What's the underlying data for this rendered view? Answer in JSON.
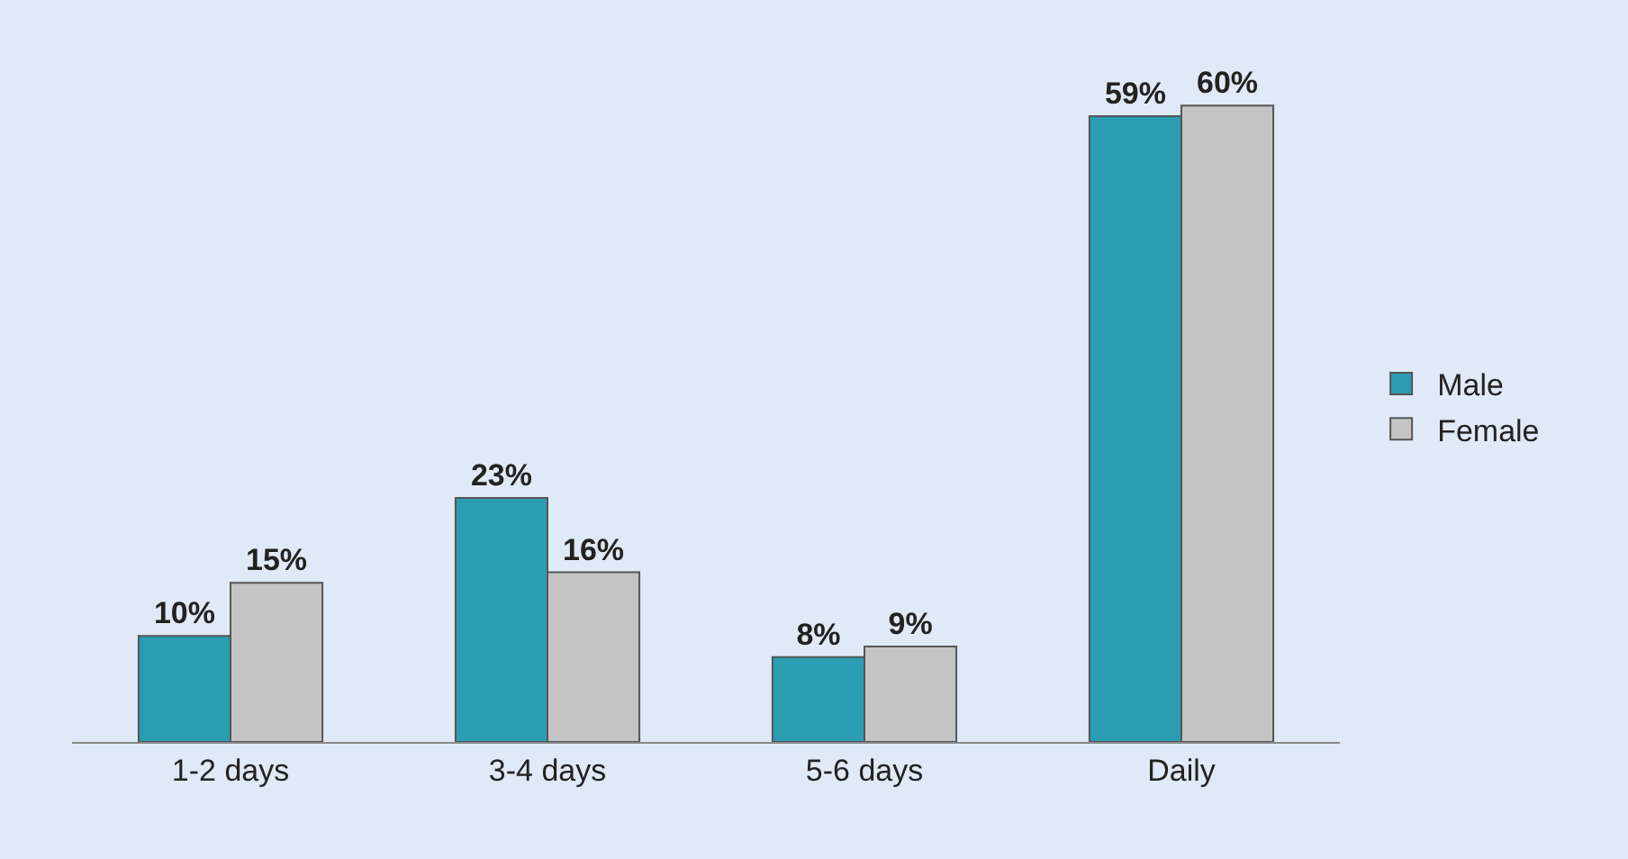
{
  "chart_data": {
    "type": "bar",
    "categories": [
      "1-2 days",
      "3-4 days",
      "5-6 days",
      "Daily"
    ],
    "series": [
      {
        "name": "Male",
        "color": "#2b9db3",
        "values": [
          10,
          23,
          8,
          59
        ],
        "value_labels": [
          "10%",
          "23%",
          "8%",
          "59%"
        ]
      },
      {
        "name": "Female",
        "color": "#c4c4c4",
        "values": [
          15,
          16,
          9,
          60
        ],
        "value_labels": [
          "15%",
          "16%",
          "9%",
          "60%"
        ]
      }
    ],
    "legend": "right",
    "tick_labels": "x"
  }
}
